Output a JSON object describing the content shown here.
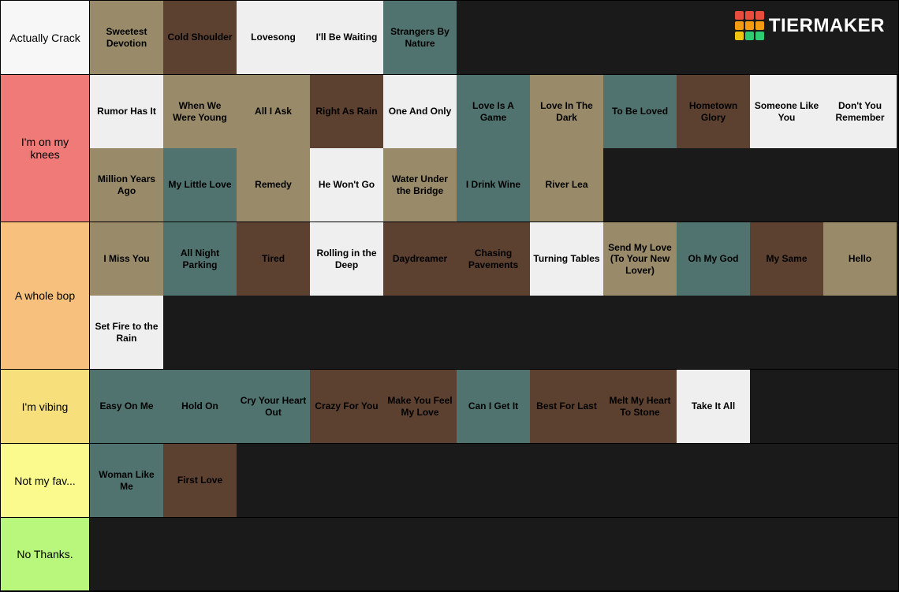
{
  "brand": "TIERMAKER",
  "logo_colors": [
    "#e84c3d",
    "#e84c3d",
    "#e84c3d",
    "#f39c12",
    "#f39c12",
    "#f39c12",
    "#f1c40f",
    "#2ecc71",
    "#2ecc71"
  ],
  "item_palette": {
    "light": "#efefef",
    "tan": "#998b69",
    "brown": "#5c4030",
    "dbrown": "#604b36",
    "teal": "#50736f",
    "white": "#efefef"
  },
  "tiers": [
    {
      "label": "Actually Crack",
      "label_bg": "#f7f7f7",
      "height": "single",
      "items": [
        {
          "text": "Sweetest Devotion",
          "bg": "#998b69"
        },
        {
          "text": "Cold Shoulder",
          "bg": "#5c4030"
        },
        {
          "text": "Lovesong",
          "bg": "#efefef"
        },
        {
          "text": "I'll Be Waiting",
          "bg": "#efefef"
        },
        {
          "text": "Strangers By Nature",
          "bg": "#50736f"
        }
      ]
    },
    {
      "label": "I'm on my knees",
      "label_bg": "#f07a78",
      "height": "double",
      "items": [
        {
          "text": "Rumor Has It",
          "bg": "#efefef"
        },
        {
          "text": "When We Were Young",
          "bg": "#998b69"
        },
        {
          "text": "All I Ask",
          "bg": "#998b69"
        },
        {
          "text": "Right As Rain",
          "bg": "#5c4030"
        },
        {
          "text": "One And Only",
          "bg": "#efefef"
        },
        {
          "text": "Love Is A Game",
          "bg": "#50736f"
        },
        {
          "text": "Love In The Dark",
          "bg": "#998b69"
        },
        {
          "text": "To Be Loved",
          "bg": "#50736f"
        },
        {
          "text": "Hometown Glory",
          "bg": "#5c4030"
        },
        {
          "text": "Someone Like You",
          "bg": "#efefef"
        },
        {
          "text": "Don't You Remember",
          "bg": "#efefef"
        },
        {
          "text": "Million Years Ago",
          "bg": "#998b69"
        },
        {
          "text": "My Little Love",
          "bg": "#50736f"
        },
        {
          "text": "Remedy",
          "bg": "#998b69"
        },
        {
          "text": "He Won't Go",
          "bg": "#efefef"
        },
        {
          "text": "Water Under the Bridge",
          "bg": "#998b69"
        },
        {
          "text": "I Drink Wine",
          "bg": "#50736f"
        },
        {
          "text": "River Lea",
          "bg": "#998b69"
        }
      ]
    },
    {
      "label": "A whole bop",
      "label_bg": "#f7c07c",
      "height": "double",
      "items": [
        {
          "text": "I Miss You",
          "bg": "#998b69"
        },
        {
          "text": "All Night Parking",
          "bg": "#50736f"
        },
        {
          "text": "Tired",
          "bg": "#5c4030"
        },
        {
          "text": "Rolling in the Deep",
          "bg": "#efefef"
        },
        {
          "text": "Daydreamer",
          "bg": "#5c4030"
        },
        {
          "text": "Chasing Pavements",
          "bg": "#5c4030"
        },
        {
          "text": "Turning Tables",
          "bg": "#efefef"
        },
        {
          "text": "Send My Love (To Your New Lover)",
          "bg": "#998b69"
        },
        {
          "text": "Oh My God",
          "bg": "#50736f"
        },
        {
          "text": "My Same",
          "bg": "#5c4030"
        },
        {
          "text": "Hello",
          "bg": "#998b69"
        },
        {
          "text": "Set Fire to the Rain",
          "bg": "#efefef"
        }
      ]
    },
    {
      "label": "I'm vibing",
      "label_bg": "#f7e07c",
      "height": "single",
      "items": [
        {
          "text": "Easy On Me",
          "bg": "#50736f"
        },
        {
          "text": "Hold On",
          "bg": "#50736f"
        },
        {
          "text": "Cry Your Heart Out",
          "bg": "#50736f"
        },
        {
          "text": "Crazy For You",
          "bg": "#5c4030"
        },
        {
          "text": "Make You Feel My Love",
          "bg": "#5c4030"
        },
        {
          "text": "Can I Get It",
          "bg": "#50736f"
        },
        {
          "text": "Best For Last",
          "bg": "#5c4030"
        },
        {
          "text": "Melt My Heart To Stone",
          "bg": "#5c4030"
        },
        {
          "text": "Take It All",
          "bg": "#efefef"
        }
      ]
    },
    {
      "label": "Not my fav...",
      "label_bg": "#fbfb8d",
      "height": "single",
      "items": [
        {
          "text": "Woman Like Me",
          "bg": "#50736f"
        },
        {
          "text": "First Love",
          "bg": "#5c4030"
        }
      ]
    },
    {
      "label": "No Thanks.",
      "label_bg": "#b8f77c",
      "height": "single",
      "items": []
    }
  ]
}
